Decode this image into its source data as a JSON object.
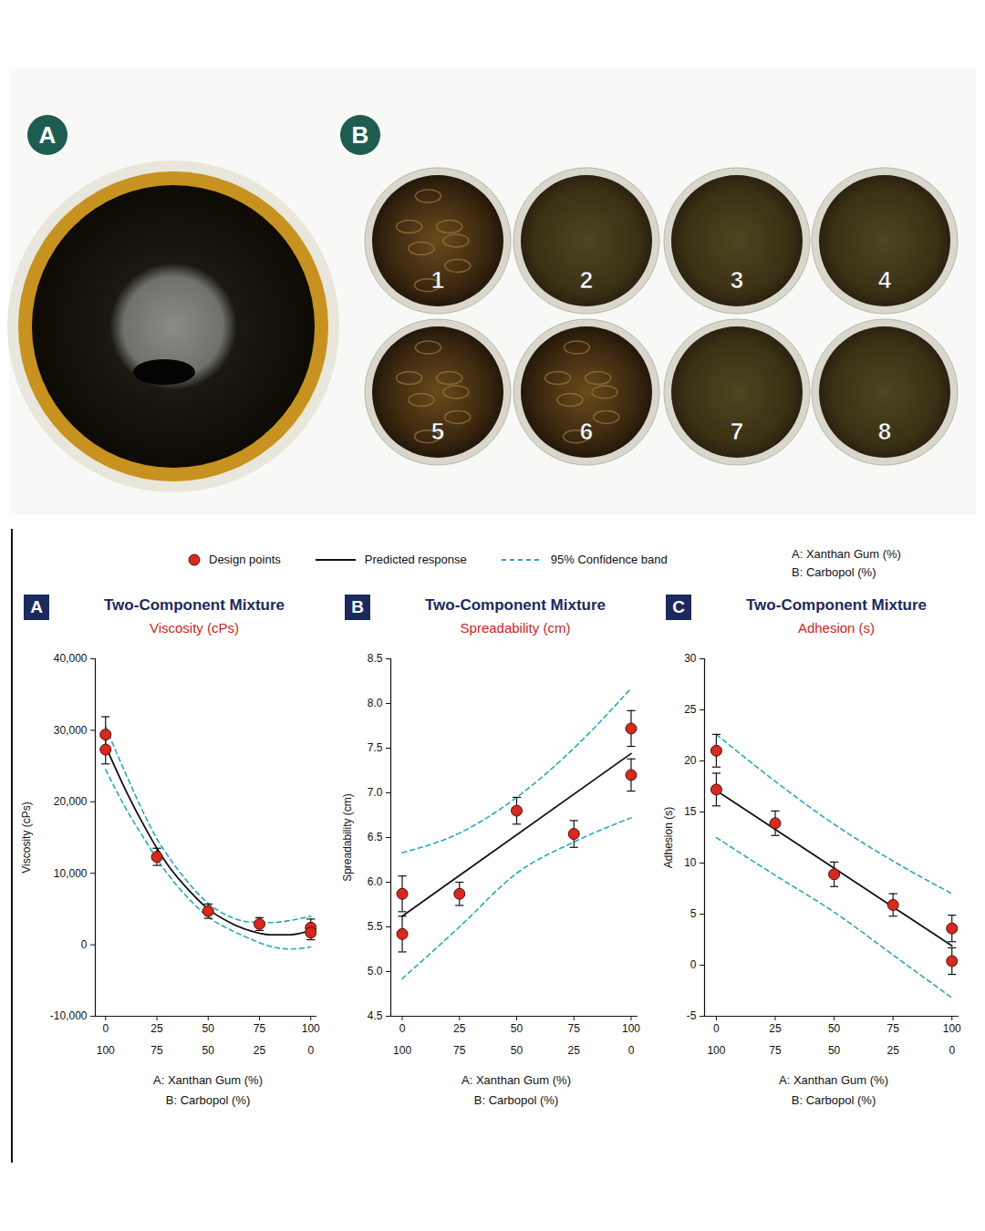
{
  "photos": {
    "panel_a": {
      "label": "A"
    },
    "panel_b": {
      "label": "B",
      "jars": [
        "1",
        "2",
        "3",
        "4",
        "5",
        "6",
        "7",
        "8"
      ]
    }
  },
  "figure": {
    "components": [
      "A: Xanthan Gum (%)",
      "B: Carbopol (%)"
    ]
  },
  "chart_data": [
    {
      "panel": "A",
      "type": "scatter",
      "title": "Two-Component Mixture",
      "subtitle": "Viscosity (cPs)",
      "xlabel": [
        "A: Xanthan Gum (%)",
        "B: Carbopol (%)"
      ],
      "ylabel": "Viscosity (cPs)",
      "xlim": [
        -5,
        103
      ],
      "xticks": [
        0,
        25,
        50,
        75,
        100
      ],
      "xticks_b": [
        100,
        75,
        50,
        25,
        0
      ],
      "ylim": [
        -10000,
        40000
      ],
      "yticks": [
        {
          "value": -10000,
          "label": "-10,000"
        },
        0,
        {
          "value": 10000,
          "label": "10,000"
        },
        {
          "value": 20000,
          "label": "20,000"
        },
        {
          "value": 30000,
          "label": "30,000"
        },
        {
          "value": 40000,
          "label": "40,000"
        }
      ],
      "legend": "top",
      "series": [
        {
          "name": "Design points",
          "type": "scatter",
          "color": "#d42a1f",
          "marker": "circle",
          "x": [
            0,
            0,
            25,
            50,
            75,
            100,
            100
          ],
          "values": [
            29400,
            27300,
            12300,
            4700,
            2900,
            2400,
            1700
          ],
          "errors": [
            2500,
            2000,
            1200,
            1000,
            900,
            1200,
            1000
          ]
        },
        {
          "name": "Predicted response",
          "type": "line",
          "color": "#111111",
          "line_style": "solid",
          "x": [
            0,
            10,
            20,
            25,
            30,
            40,
            50,
            60,
            70,
            80,
            90,
            100
          ],
          "values": [
            27800,
            21500,
            16000,
            13500,
            11300,
            7800,
            5000,
            3200,
            2000,
            1400,
            1400,
            2000
          ]
        },
        {
          "name": "95% Confidence band",
          "type": "band",
          "color": "#2aa8b8",
          "line_style": "dashed",
          "x": [
            0,
            10,
            20,
            25,
            30,
            40,
            50,
            60,
            70,
            80,
            90,
            100
          ],
          "upper": [
            30500,
            23800,
            17600,
            14800,
            12600,
            8800,
            5800,
            4000,
            3200,
            3100,
            3400,
            4000
          ],
          "lower": [
            24500,
            19000,
            14300,
            12000,
            10000,
            6600,
            3900,
            2200,
            900,
            -200,
            -600,
            -300
          ]
        }
      ]
    },
    {
      "panel": "B",
      "type": "scatter",
      "title": "Two-Component Mixture",
      "subtitle": "Spreadability (cm)",
      "xlabel": [
        "A: Xanthan Gum (%)",
        "B: Carbopol (%)"
      ],
      "ylabel": "Spreadability (cm)",
      "xlim": [
        -5,
        103
      ],
      "xticks": [
        0,
        25,
        50,
        75,
        100
      ],
      "xticks_b": [
        100,
        75,
        50,
        25,
        0
      ],
      "ylim": [
        4.5,
        8.5
      ],
      "yticks": [
        4.5,
        {
          "value": 5,
          "label": "5.0"
        },
        5.5,
        {
          "value": 6,
          "label": "6.0"
        },
        6.5,
        {
          "value": 7,
          "label": "7.0"
        },
        7.5,
        {
          "value": 8,
          "label": "8.0"
        },
        8.5
      ],
      "legend": "top",
      "series": [
        {
          "name": "Design points",
          "type": "scatter",
          "color": "#d42a1f",
          "marker": "circle",
          "x": [
            0,
            0,
            25,
            50,
            75,
            100,
            100
          ],
          "values": [
            5.87,
            5.42,
            5.87,
            6.8,
            6.54,
            7.72,
            7.2
          ],
          "errors": [
            0.2,
            0.2,
            0.13,
            0.15,
            0.15,
            0.2,
            0.18
          ]
        },
        {
          "name": "Predicted response",
          "type": "line",
          "color": "#111111",
          "line_style": "solid",
          "x": [
            0,
            100
          ],
          "values": [
            5.62,
            7.44
          ]
        },
        {
          "name": "95% Confidence band",
          "type": "band",
          "color": "#2aa8b8",
          "line_style": "dashed",
          "x": [
            0,
            25,
            50,
            75,
            100
          ],
          "upper": [
            6.33,
            6.55,
            6.95,
            7.5,
            8.17
          ],
          "lower": [
            4.92,
            5.5,
            6.1,
            6.45,
            6.72
          ]
        }
      ]
    },
    {
      "panel": "C",
      "type": "scatter",
      "title": "Two-Component Mixture",
      "subtitle": "Adhesion (s)",
      "xlabel": [
        "A: Xanthan Gum (%)",
        "B: Carbopol (%)"
      ],
      "ylabel": "Adhesion (s)",
      "xlim": [
        -5,
        103
      ],
      "xticks": [
        0,
        25,
        50,
        75,
        100
      ],
      "xticks_b": [
        100,
        75,
        50,
        25,
        0
      ],
      "ylim": [
        -5,
        30
      ],
      "yticks": [
        -5,
        0,
        5,
        10,
        15,
        20,
        25,
        30
      ],
      "legend": "top",
      "series": [
        {
          "name": "Design points",
          "type": "scatter",
          "color": "#d42a1f",
          "marker": "circle",
          "x": [
            0,
            0,
            25,
            50,
            75,
            100,
            100
          ],
          "values": [
            21,
            17.2,
            13.9,
            8.9,
            5.9,
            3.6,
            0.4
          ],
          "errors": [
            1.6,
            1.6,
            1.2,
            1.2,
            1.1,
            1.3,
            1.3
          ]
        },
        {
          "name": "Predicted response",
          "type": "line",
          "color": "#111111",
          "line_style": "solid",
          "x": [
            0,
            100
          ],
          "values": [
            17.1,
            1.9
          ]
        },
        {
          "name": "95% Confidence band",
          "type": "band",
          "color": "#2aa8b8",
          "line_style": "dashed",
          "x": [
            0,
            25,
            50,
            75,
            100
          ],
          "upper": [
            22.6,
            18.0,
            13.8,
            10.2,
            7.0
          ],
          "lower": [
            12.5,
            8.8,
            5.2,
            1.0,
            -3.2
          ]
        }
      ]
    }
  ]
}
